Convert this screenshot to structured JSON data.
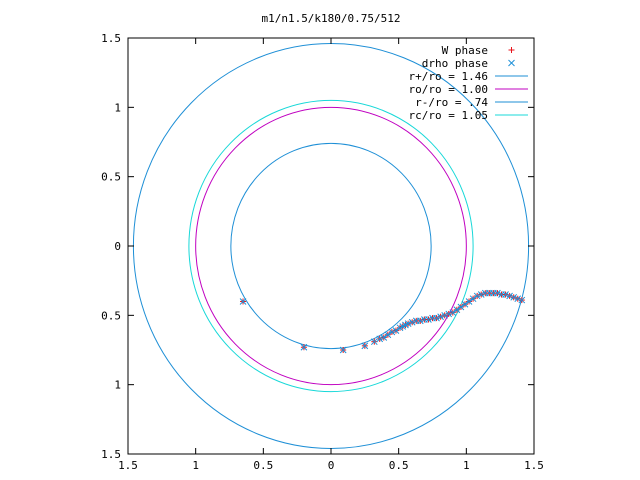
{
  "chart_data": {
    "type": "scatter",
    "title": "m1/n1.5/k180/0.75/512",
    "xlim": [
      -1.5,
      1.5
    ],
    "ylim": [
      -1.5,
      1.5
    ],
    "xticks": [
      {
        "v": -1.5,
        "label": "1.5"
      },
      {
        "v": -1.0,
        "label": "1"
      },
      {
        "v": -0.5,
        "label": "0.5"
      },
      {
        "v": 0.0,
        "label": "0"
      },
      {
        "v": 0.5,
        "label": "0.5"
      },
      {
        "v": 1.0,
        "label": "1"
      },
      {
        "v": 1.5,
        "label": "1.5"
      }
    ],
    "yticks": [
      {
        "v": 1.5,
        "label": "1.5"
      },
      {
        "v": 1.0,
        "label": "1"
      },
      {
        "v": 0.5,
        "label": "0.5"
      },
      {
        "v": 0.0,
        "label": "0"
      },
      {
        "v": -0.5,
        "label": "0.5"
      },
      {
        "v": -1.0,
        "label": "1"
      },
      {
        "v": -1.5,
        "label": "1.5"
      }
    ],
    "grid": false,
    "legend_position": "top-right",
    "legend": [
      {
        "label": "W phase",
        "kind": "plus",
        "color": "#e8141c"
      },
      {
        "label": "drho phase",
        "kind": "cross",
        "color": "#1e90d8"
      },
      {
        "label": "r+/ro = 1.46",
        "kind": "line",
        "color": "#1e8fd6"
      },
      {
        "label": "ro/ro = 1.00",
        "kind": "line",
        "color": "#c000c0"
      },
      {
        "label": "r-/ro = .74",
        "kind": "line",
        "color": "#1e8fd6"
      },
      {
        "label": "rc/ro = 1.05",
        "kind": "line",
        "color": "#18d8d8"
      }
    ],
    "circles": [
      {
        "name": "r+/ro",
        "r": 1.46,
        "color": "#1e8fd6"
      },
      {
        "name": "ro/ro",
        "r": 1.0,
        "color": "#c000c0"
      },
      {
        "name": "r-/ro",
        "r": 0.74,
        "color": "#1e8fd6"
      },
      {
        "name": "rc/ro",
        "r": 1.05,
        "color": "#18d8d8"
      }
    ],
    "series": [
      {
        "name": "W phase",
        "marker": "plus",
        "color": "#e8141c",
        "points": [
          [
            -0.65,
            -0.4
          ],
          [
            -0.2,
            -0.73
          ],
          [
            0.09,
            -0.75
          ],
          [
            0.25,
            -0.72
          ],
          [
            0.32,
            -0.69
          ],
          [
            0.36,
            -0.67
          ],
          [
            0.39,
            -0.66
          ],
          [
            0.42,
            -0.64
          ],
          [
            0.45,
            -0.62
          ],
          [
            0.48,
            -0.61
          ],
          [
            0.51,
            -0.59
          ],
          [
            0.53,
            -0.58
          ],
          [
            0.55,
            -0.57
          ],
          [
            0.57,
            -0.56
          ],
          [
            0.6,
            -0.55
          ],
          [
            0.63,
            -0.54
          ],
          [
            0.66,
            -0.54
          ],
          [
            0.69,
            -0.53
          ],
          [
            0.72,
            -0.53
          ],
          [
            0.75,
            -0.52
          ],
          [
            0.78,
            -0.52
          ],
          [
            0.81,
            -0.51
          ],
          [
            0.84,
            -0.5
          ],
          [
            0.87,
            -0.49
          ],
          [
            0.9,
            -0.48
          ],
          [
            0.93,
            -0.46
          ],
          [
            0.96,
            -0.44
          ],
          [
            0.99,
            -0.42
          ],
          [
            1.02,
            -0.4
          ],
          [
            1.05,
            -0.38
          ],
          [
            1.08,
            -0.36
          ],
          [
            1.11,
            -0.35
          ],
          [
            1.14,
            -0.34
          ],
          [
            1.17,
            -0.34
          ],
          [
            1.2,
            -0.34
          ],
          [
            1.23,
            -0.34
          ],
          [
            1.26,
            -0.35
          ],
          [
            1.29,
            -0.35
          ],
          [
            1.32,
            -0.36
          ],
          [
            1.35,
            -0.37
          ],
          [
            1.38,
            -0.38
          ],
          [
            1.41,
            -0.39
          ]
        ]
      },
      {
        "name": "drho phase",
        "marker": "cross",
        "color": "#1e90d8",
        "points": [
          [
            -0.65,
            -0.4
          ],
          [
            -0.2,
            -0.73
          ],
          [
            0.09,
            -0.75
          ],
          [
            0.25,
            -0.72
          ],
          [
            0.32,
            -0.69
          ],
          [
            0.36,
            -0.67
          ],
          [
            0.39,
            -0.66
          ],
          [
            0.42,
            -0.64
          ],
          [
            0.45,
            -0.62
          ],
          [
            0.48,
            -0.61
          ],
          [
            0.51,
            -0.59
          ],
          [
            0.53,
            -0.58
          ],
          [
            0.55,
            -0.57
          ],
          [
            0.57,
            -0.56
          ],
          [
            0.6,
            -0.55
          ],
          [
            0.63,
            -0.54
          ],
          [
            0.66,
            -0.54
          ],
          [
            0.69,
            -0.53
          ],
          [
            0.72,
            -0.53
          ],
          [
            0.75,
            -0.52
          ],
          [
            0.78,
            -0.52
          ],
          [
            0.81,
            -0.51
          ],
          [
            0.84,
            -0.5
          ],
          [
            0.87,
            -0.49
          ],
          [
            0.9,
            -0.48
          ],
          [
            0.93,
            -0.46
          ],
          [
            0.96,
            -0.44
          ],
          [
            0.99,
            -0.42
          ],
          [
            1.02,
            -0.4
          ],
          [
            1.05,
            -0.38
          ],
          [
            1.08,
            -0.36
          ],
          [
            1.11,
            -0.35
          ],
          [
            1.14,
            -0.34
          ],
          [
            1.17,
            -0.34
          ],
          [
            1.2,
            -0.34
          ],
          [
            1.23,
            -0.34
          ],
          [
            1.26,
            -0.35
          ],
          [
            1.29,
            -0.35
          ],
          [
            1.32,
            -0.36
          ],
          [
            1.35,
            -0.37
          ],
          [
            1.38,
            -0.38
          ],
          [
            1.41,
            -0.39
          ]
        ]
      }
    ]
  }
}
